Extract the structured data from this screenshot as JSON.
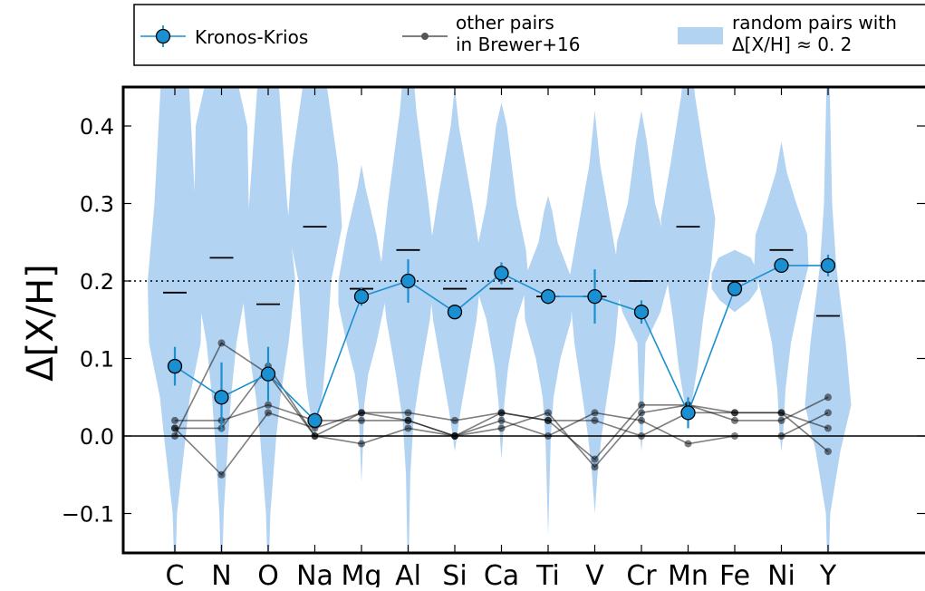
{
  "chart_data": {
    "type": "scatter",
    "title": "",
    "xlabel": "",
    "ylabel": "Δ[X/H]",
    "ylim": [
      -0.15,
      0.45
    ],
    "yticks": [
      -0.1,
      0.0,
      0.1,
      0.2,
      0.3,
      0.4
    ],
    "ytick_labels": [
      "−0.1",
      "0.0",
      "0.1",
      "0.2",
      "0.3",
      "0.4"
    ],
    "grid": false,
    "reference_lines": [
      {
        "y": 0.2,
        "style": "dotted"
      },
      {
        "y": 0.0,
        "style": "solid"
      }
    ],
    "categories": [
      "C",
      "N",
      "O",
      "Na",
      "Mg",
      "Al",
      "Si",
      "Ca",
      "Ti",
      "V",
      "Cr",
      "Mn",
      "Fe",
      "Ni",
      "Y"
    ],
    "legend": {
      "placement": "top, outside",
      "entries": [
        {
          "label": "Kronos-Krios"
        },
        {
          "label_line1": "other pairs",
          "label_line2": "in Brewer+16"
        },
        {
          "label_line1": "random pairs with",
          "label_line2": "Δ[X/H] ≈ 0. 2"
        }
      ]
    },
    "series": [
      {
        "name": "Kronos-Krios",
        "color": "#1a8fd1",
        "values": [
          0.09,
          0.05,
          0.08,
          0.02,
          0.18,
          0.2,
          0.16,
          0.21,
          0.18,
          0.18,
          0.16,
          0.03,
          0.19,
          0.22,
          0.22
        ],
        "yerr": [
          0.025,
          0.045,
          0.035,
          0.01,
          0.012,
          0.028,
          0.008,
          0.014,
          0.01,
          0.035,
          0.015,
          0.02,
          0.008,
          0.008,
          0.014
        ]
      },
      {
        "name": "other pairs in Brewer+16",
        "color": "#555555",
        "pairs": [
          [
            0.0,
            0.12,
            0.08,
            0.0,
            0.03,
            0.02,
            0.0,
            0.01,
            0.03,
            -0.04,
            0.03,
            0.04,
            0.02,
            0.02,
            0.05
          ],
          [
            0.01,
            -0.05,
            0.03,
            0.01,
            0.03,
            0.03,
            0.02,
            0.03,
            0.02,
            -0.03,
            0.04,
            0.04,
            0.03,
            0.03,
            -0.02
          ],
          [
            0.02,
            0.02,
            0.04,
            0.02,
            0.02,
            0.02,
            0.0,
            0.02,
            0.0,
            0.03,
            0.02,
            -0.01,
            0.0,
            0.0,
            0.03
          ],
          [
            0.01,
            0.01,
            0.09,
            0.0,
            -0.01,
            0.01,
            0.0,
            0.03,
            0.02,
            0.02,
            0.0,
            0.03,
            0.03,
            0.03,
            0.01
          ]
        ]
      },
      {
        "name": "random pairs with Δ[X/H] ≈ 0. 2",
        "type": "violin",
        "color": "#b3d3f2",
        "medians": [
          0.185,
          0.23,
          0.17,
          0.27,
          0.19,
          0.24,
          0.19,
          0.19,
          0.18,
          0.18,
          0.2,
          0.27,
          0.2,
          0.24,
          0.155
        ]
      }
    ]
  }
}
